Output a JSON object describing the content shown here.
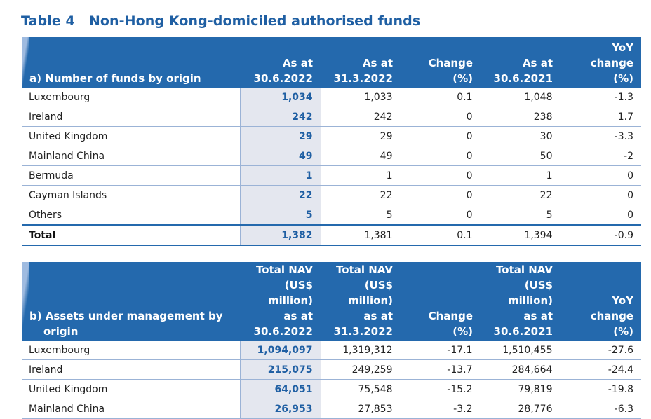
{
  "title": {
    "number": "Table 4",
    "text": "Non-Hong Kong-domiciled authorised funds"
  },
  "table_a": {
    "label": "a) Number of funds by origin",
    "columns": [
      {
        "l1": "",
        "l2": "As at",
        "l3": "30.6.2022"
      },
      {
        "l1": "",
        "l2": "As at",
        "l3": "31.3.2022"
      },
      {
        "l1": "",
        "l2": "Change",
        "l3": "(%)"
      },
      {
        "l1": "",
        "l2": "As at",
        "l3": "30.6.2021"
      },
      {
        "l1": "YoY",
        "l2": "change",
        "l3": "(%)"
      }
    ],
    "rows": [
      {
        "name": "Luxembourg",
        "v": [
          "1,034",
          "1,033",
          "0.1",
          "1,048",
          "-1.3"
        ]
      },
      {
        "name": "Ireland",
        "v": [
          "242",
          "242",
          "0",
          "238",
          "1.7"
        ]
      },
      {
        "name": "United Kingdom",
        "v": [
          "29",
          "29",
          "0",
          "30",
          "-3.3"
        ]
      },
      {
        "name": "Mainland China",
        "v": [
          "49",
          "49",
          "0",
          "50",
          "-2"
        ]
      },
      {
        "name": "Bermuda",
        "v": [
          "1",
          "1",
          "0",
          "1",
          "0"
        ]
      },
      {
        "name": "Cayman Islands",
        "v": [
          "22",
          "22",
          "0",
          "22",
          "0"
        ]
      },
      {
        "name": "Others",
        "v": [
          "5",
          "5",
          "0",
          "5",
          "0"
        ]
      }
    ],
    "total": {
      "name": "Total",
      "v": [
        "1,382",
        "1,381",
        "0.1",
        "1,394",
        "-0.9"
      ]
    }
  },
  "table_b": {
    "label_line1": "b) Assets under management by",
    "label_line2": "origin",
    "columns": [
      {
        "l1": "Total NAV",
        "l2": "(US$ million)",
        "l3": "as at",
        "l4": "30.6.2022"
      },
      {
        "l1": "Total NAV",
        "l2": "(US$ million)",
        "l3": "as at",
        "l4": "31.3.2022"
      },
      {
        "l1": "",
        "l2": "",
        "l3": "Change",
        "l4": "(%)"
      },
      {
        "l1": "Total NAV",
        "l2": "(US$ million)",
        "l3": "as at",
        "l4": "30.6.2021"
      },
      {
        "l1": "",
        "l2": "YoY",
        "l3": "change",
        "l4": "(%)"
      }
    ],
    "rows": [
      {
        "name": "Luxembourg",
        "v": [
          "1,094,097",
          "1,319,312",
          "-17.1",
          "1,510,455",
          "-27.6"
        ]
      },
      {
        "name": "Ireland",
        "v": [
          "215,075",
          "249,259",
          "-13.7",
          "284,664",
          "-24.4"
        ]
      },
      {
        "name": "United Kingdom",
        "v": [
          "64,051",
          "75,548",
          "-15.2",
          "79,819",
          "-19.8"
        ]
      },
      {
        "name": "Mainland China",
        "v": [
          "26,953",
          "27,853",
          "-3.2",
          "28,776",
          "-6.3"
        ]
      }
    ]
  },
  "colors": {
    "header_bg": "#2469ad",
    "title": "#1f5fa3",
    "highlight_bg": "#e4e7ef",
    "rule": "#9bb3d6"
  }
}
